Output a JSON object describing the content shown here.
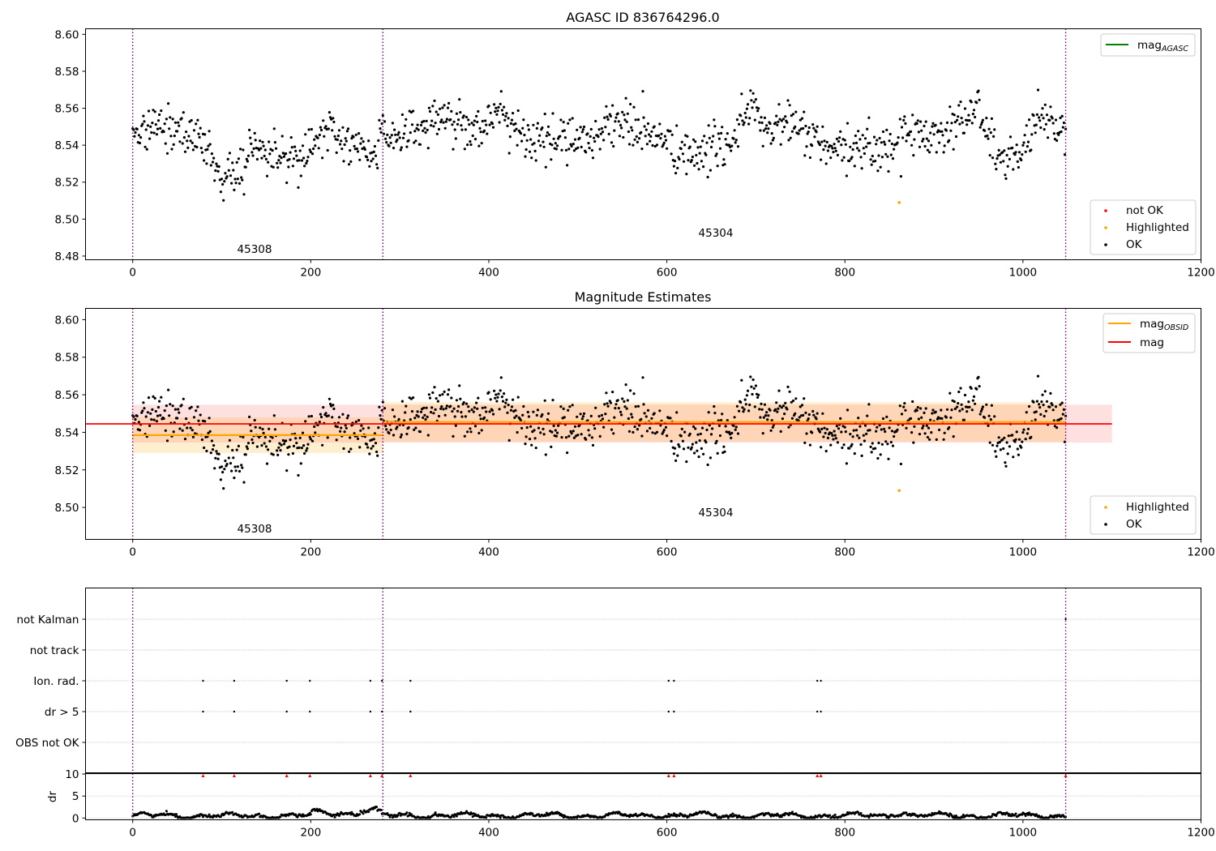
{
  "chart_data": [
    {
      "id": "agasc",
      "type": "scatter",
      "title": "AGASC ID 836764296.0",
      "xlim": [
        -53,
        1200
      ],
      "ylim": [
        8.478,
        8.603
      ],
      "xticks": [
        0,
        200,
        400,
        600,
        800,
        1000,
        1200
      ],
      "yticks": [
        8.48,
        8.5,
        8.52,
        8.54,
        8.56,
        8.58,
        8.6
      ],
      "ytick_decimals": 2,
      "grid": false,
      "legend_upper": [
        {
          "label": "mag",
          "sub": "AGASC",
          "color": "#008000",
          "kind": "line"
        }
      ],
      "legend_lower": [
        {
          "label": "not OK",
          "color": "#ff0000",
          "kind": "marker"
        },
        {
          "label": "Highlighted",
          "color": "#ffa500",
          "kind": "marker"
        },
        {
          "label": "OK",
          "color": "#000000",
          "kind": "marker"
        }
      ],
      "highlighted": [
        {
          "x": 861,
          "y": 8.509
        }
      ]
    },
    {
      "id": "estimates",
      "type": "scatter",
      "title": "Magnitude Estimates",
      "xlim": [
        -53,
        1200
      ],
      "ylim": [
        8.483,
        8.606
      ],
      "xticks": [
        0,
        200,
        400,
        600,
        800,
        1000,
        1200
      ],
      "yticks": [
        8.5,
        8.52,
        8.54,
        8.56,
        8.58,
        8.6
      ],
      "ytick_decimals": 2,
      "grid": false,
      "mag": {
        "value": 8.5445,
        "band": [
          8.5345,
          8.5547
        ],
        "x": [
          -1,
          1100
        ],
        "color": "#ff0000"
      },
      "obsid_mags": [
        {
          "x": [
            0,
            281
          ],
          "value": 8.5385,
          "band": [
            8.529,
            8.548
          ]
        },
        {
          "x": [
            281,
            1048
          ],
          "value": 8.5455,
          "band": [
            8.535,
            8.556
          ]
        }
      ],
      "legend_upper": [
        {
          "label": "mag",
          "sub": "OBSID",
          "color": "#ffa500",
          "kind": "line"
        },
        {
          "label": "mag",
          "sub": "",
          "color": "#ff0000",
          "kind": "line"
        }
      ],
      "legend_lower": [
        {
          "label": "Highlighted",
          "color": "#ffa500",
          "kind": "marker"
        },
        {
          "label": "OK",
          "color": "#000000",
          "kind": "marker"
        }
      ],
      "highlighted": [
        {
          "x": 861,
          "y": 8.509
        }
      ]
    },
    {
      "id": "flags",
      "type": "scatter",
      "xlim": [
        -53,
        1200
      ],
      "categories": [
        "not Kalman",
        "not track",
        "Ion. rad.",
        "dr > 5",
        "OBS not OK"
      ],
      "grid": true,
      "ion_rad_x": [
        79,
        114,
        173,
        199,
        267,
        280,
        312,
        602,
        608,
        769,
        773
      ],
      "dr_gt5_x": [
        79,
        114,
        173,
        199,
        267,
        280,
        312,
        602,
        608,
        769,
        773
      ],
      "not_kalman_x": [
        1048
      ]
    },
    {
      "id": "dr",
      "type": "scatter",
      "ylabel": "dr",
      "xlim": [
        -53,
        1200
      ],
      "ylim": [
        -0.4,
        10.1
      ],
      "xticks": [
        0,
        200,
        400,
        600,
        800,
        1000,
        1200
      ],
      "yticks": [
        0,
        5,
        10
      ],
      "grid": true,
      "clipped_x": [
        79,
        114,
        173,
        199,
        267,
        280,
        312,
        602,
        608,
        769,
        773,
        1048
      ],
      "clipped_color": "#ff0000"
    }
  ],
  "observations": [
    {
      "obsid": "45308",
      "start": 0,
      "end": 281
    },
    {
      "obsid": "45304",
      "start": 281,
      "end": 1048
    }
  ],
  "colors": {
    "ok": "#000000",
    "highlighted": "#ffa500",
    "not_ok": "#ff0000",
    "obs_boundary": "#800080",
    "band_obsid": "#ffa500",
    "band_mag": "#ff0000"
  }
}
